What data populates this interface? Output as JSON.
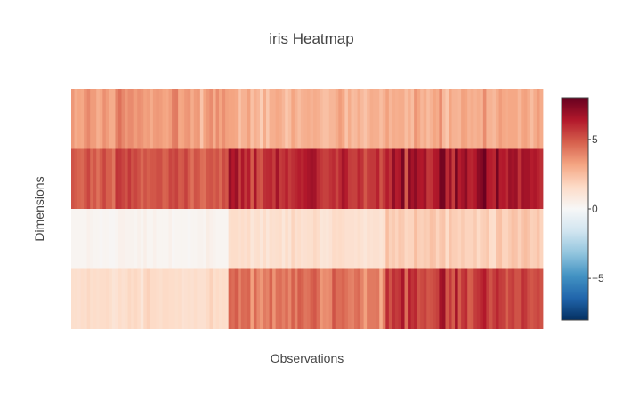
{
  "chart_data": {
    "type": "heatmap",
    "title": "iris Heatmap",
    "xlabel": "Observations",
    "ylabel": "Dimensions",
    "zlim": [
      -8,
      8
    ],
    "colorbar": {
      "ticks": [
        5,
        0,
        -5
      ],
      "tick_labels": [
        "5",
        "0",
        "−5"
      ],
      "colorscale": [
        [
          0.0,
          "#053061"
        ],
        [
          0.1,
          "#2166ac"
        ],
        [
          0.2,
          "#4393c3"
        ],
        [
          0.3,
          "#92c5de"
        ],
        [
          0.4,
          "#d1e5f0"
        ],
        [
          0.5,
          "#f7f7f7"
        ],
        [
          0.6,
          "#fddbc7"
        ],
        [
          0.7,
          "#f4a582"
        ],
        [
          0.8,
          "#d6604d"
        ],
        [
          0.9,
          "#b2182b"
        ],
        [
          1.0,
          "#67001f"
        ]
      ]
    },
    "rows": [
      {
        "values": [
          3.5,
          3.0,
          3.2,
          3.1,
          3.6,
          3.9,
          3.4,
          3.4,
          2.9,
          3.1,
          3.7,
          3.4,
          3.0,
          3.0,
          4.0,
          4.4,
          3.9,
          3.5,
          3.8,
          3.8,
          3.4,
          3.7,
          3.6,
          3.3,
          3.4,
          3.0,
          3.4,
          3.5,
          3.4,
          3.2,
          3.1,
          3.4,
          4.1,
          4.2,
          3.1,
          3.2,
          3.5,
          3.6,
          3.0,
          3.4,
          3.5,
          2.3,
          3.2,
          3.5,
          3.8,
          3.0,
          3.8,
          3.2,
          3.7,
          3.3,
          3.2,
          3.2,
          3.1,
          2.3,
          2.8,
          2.8,
          3.3,
          2.4,
          2.9,
          2.7,
          2.0,
          3.0,
          2.2,
          2.9,
          2.9,
          3.1,
          3.0,
          2.7,
          2.2,
          2.5,
          3.2,
          2.8,
          2.5,
          2.8,
          2.9,
          3.0,
          2.8,
          3.0,
          2.9,
          2.6,
          2.4,
          2.4,
          2.7,
          2.7,
          3.0,
          3.4,
          3.1,
          2.3,
          3.0,
          2.5,
          2.6,
          3.0,
          2.6,
          2.3,
          2.7,
          3.0,
          2.9,
          2.9,
          2.5,
          2.8,
          3.3,
          2.7,
          3.0,
          2.9,
          3.0,
          3.0,
          2.5,
          2.9,
          2.5,
          3.6,
          3.2,
          2.7,
          3.0,
          2.5,
          2.8,
          3.2,
          3.0,
          3.8,
          2.6,
          2.2,
          3.2,
          2.8,
          2.8,
          2.7,
          3.3,
          3.2,
          2.8,
          3.0,
          2.8,
          3.0,
          2.8,
          3.8,
          2.8,
          2.8,
          2.6,
          3.0,
          3.4,
          3.1,
          3.0,
          3.1,
          3.1,
          3.1,
          2.7,
          3.2,
          3.3,
          3.0,
          2.5,
          3.0,
          3.4,
          3.0
        ]
      },
      {
        "values": [
          5.1,
          4.9,
          4.7,
          4.6,
          5.0,
          5.4,
          4.6,
          5.0,
          4.4,
          4.9,
          5.4,
          4.8,
          4.8,
          4.3,
          5.8,
          5.7,
          5.4,
          5.1,
          5.7,
          5.1,
          5.4,
          5.1,
          4.6,
          5.1,
          4.8,
          5.0,
          5.0,
          5.2,
          5.2,
          4.7,
          4.8,
          5.4,
          5.2,
          5.5,
          4.9,
          5.0,
          5.5,
          4.9,
          4.4,
          5.1,
          5.0,
          4.5,
          4.4,
          5.0,
          5.1,
          4.8,
          5.1,
          4.6,
          5.3,
          5.0,
          7.0,
          6.4,
          6.9,
          5.5,
          6.5,
          5.7,
          6.3,
          4.9,
          6.6,
          5.2,
          5.0,
          5.9,
          6.0,
          6.1,
          5.6,
          6.7,
          5.6,
          5.8,
          6.2,
          5.6,
          5.9,
          6.1,
          6.3,
          6.1,
          6.4,
          6.6,
          6.8,
          6.7,
          6.0,
          5.7,
          5.5,
          5.5,
          5.8,
          6.0,
          5.4,
          6.0,
          6.7,
          6.3,
          5.6,
          5.5,
          5.5,
          6.1,
          5.8,
          5.0,
          5.6,
          5.7,
          5.7,
          6.2,
          5.1,
          5.7,
          6.3,
          5.8,
          7.1,
          6.3,
          6.5,
          7.6,
          4.9,
          7.3,
          6.7,
          7.2,
          6.5,
          6.4,
          6.8,
          5.7,
          5.8,
          6.4,
          6.5,
          7.7,
          7.7,
          6.0,
          6.9,
          5.6,
          7.7,
          6.3,
          6.7,
          7.2,
          6.2,
          6.1,
          6.4,
          7.2,
          7.4,
          7.9,
          6.4,
          6.3,
          6.1,
          7.7,
          6.3,
          6.4,
          6.0,
          6.9,
          6.7,
          6.9,
          5.8,
          6.8,
          6.7,
          6.7,
          6.3,
          6.5,
          6.2,
          5.9
        ]
      },
      {
        "values": [
          0.2,
          0.2,
          0.2,
          0.2,
          0.2,
          0.4,
          0.3,
          0.2,
          0.2,
          0.1,
          0.2,
          0.2,
          0.1,
          0.1,
          0.2,
          0.4,
          0.4,
          0.3,
          0.3,
          0.3,
          0.2,
          0.4,
          0.2,
          0.5,
          0.2,
          0.2,
          0.4,
          0.2,
          0.2,
          0.2,
          0.2,
          0.4,
          0.1,
          0.2,
          0.2,
          0.2,
          0.2,
          0.1,
          0.2,
          0.2,
          0.3,
          0.3,
          0.2,
          0.6,
          0.4,
          0.3,
          0.2,
          0.2,
          0.2,
          0.2,
          1.4,
          1.5,
          1.5,
          1.3,
          1.5,
          1.3,
          1.6,
          1.0,
          1.3,
          1.4,
          1.0,
          1.5,
          1.0,
          1.4,
          1.3,
          1.4,
          1.5,
          1.0,
          1.5,
          1.1,
          1.8,
          1.3,
          1.5,
          1.2,
          1.3,
          1.4,
          1.4,
          1.7,
          1.5,
          1.0,
          1.1,
          1.0,
          1.2,
          1.6,
          1.5,
          1.6,
          1.5,
          1.3,
          1.3,
          1.3,
          1.2,
          1.4,
          1.2,
          1.0,
          1.3,
          1.2,
          1.3,
          1.3,
          1.1,
          1.3,
          2.5,
          1.9,
          2.1,
          1.8,
          2.2,
          2.1,
          1.7,
          1.8,
          1.8,
          2.5,
          2.0,
          1.9,
          2.1,
          2.0,
          2.4,
          2.3,
          1.8,
          2.2,
          2.3,
          1.5,
          2.3,
          2.0,
          2.0,
          1.8,
          2.1,
          1.8,
          1.8,
          1.8,
          2.1,
          1.6,
          1.9,
          2.0,
          2.2,
          1.5,
          1.4,
          2.3,
          2.4,
          1.8,
          1.8,
          2.1,
          2.4,
          2.3,
          1.9,
          2.3,
          2.5,
          2.3,
          1.9,
          2.0,
          2.3,
          1.8
        ]
      },
      {
        "values": [
          1.4,
          1.4,
          1.3,
          1.5,
          1.4,
          1.7,
          1.4,
          1.5,
          1.4,
          1.5,
          1.5,
          1.6,
          1.4,
          1.1,
          1.2,
          1.5,
          1.3,
          1.4,
          1.7,
          1.5,
          1.7,
          1.5,
          1.0,
          1.7,
          1.9,
          1.6,
          1.6,
          1.5,
          1.4,
          1.6,
          1.6,
          1.5,
          1.5,
          1.4,
          1.5,
          1.2,
          1.3,
          1.4,
          1.3,
          1.5,
          1.3,
          1.3,
          1.3,
          1.6,
          1.9,
          1.4,
          1.6,
          1.4,
          1.5,
          1.4,
          4.7,
          4.5,
          4.9,
          4.0,
          4.6,
          4.5,
          4.7,
          3.3,
          4.6,
          3.9,
          3.5,
          4.2,
          4.0,
          4.7,
          3.6,
          4.4,
          4.5,
          4.1,
          4.5,
          3.9,
          4.8,
          4.0,
          4.9,
          4.7,
          4.3,
          4.4,
          4.8,
          5.0,
          4.5,
          3.5,
          3.8,
          3.7,
          3.9,
          5.1,
          4.5,
          4.5,
          4.7,
          4.4,
          4.1,
          4.0,
          4.4,
          4.6,
          4.0,
          3.3,
          4.2,
          4.2,
          4.2,
          4.3,
          3.0,
          4.1,
          6.0,
          5.1,
          5.9,
          5.6,
          5.8,
          6.6,
          4.5,
          6.3,
          5.8,
          6.1,
          5.1,
          5.3,
          5.5,
          5.0,
          5.1,
          5.3,
          5.5,
          6.7,
          6.9,
          5.0,
          5.7,
          4.9,
          6.7,
          4.9,
          5.7,
          6.0,
          4.8,
          4.9,
          5.6,
          5.8,
          6.1,
          6.4,
          5.6,
          5.1,
          5.6,
          6.1,
          5.6,
          5.5,
          4.8,
          5.4,
          5.6,
          5.1,
          5.1,
          5.9,
          5.7,
          5.2,
          5.0,
          5.2,
          5.4,
          5.1
        ]
      }
    ]
  }
}
